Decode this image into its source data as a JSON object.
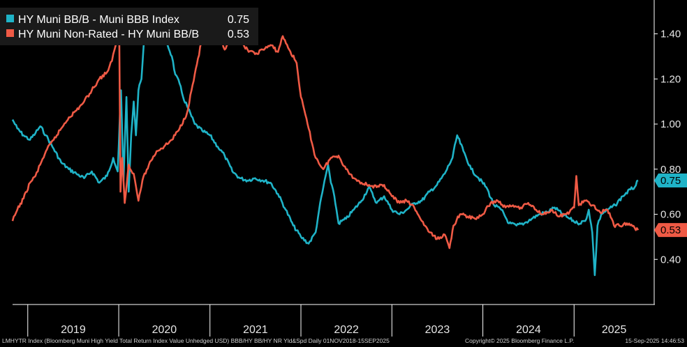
{
  "chart_data": {
    "type": "line",
    "y_ticks": [
      "1.40",
      "1.20",
      "1.00",
      "0.80",
      "0.60",
      "0.40"
    ],
    "ylim": [
      0.2,
      1.55
    ],
    "x_ticks": [
      "2019",
      "2020",
      "2021",
      "2022",
      "2023",
      "2024",
      "2025"
    ],
    "xlim": [
      "2018-11-01",
      "2025-09-15"
    ],
    "grid": false,
    "legend_position": "top-left",
    "series": [
      {
        "name": "HY Muni BB/B - Muni BBB Index",
        "last_value_label": "0.75",
        "color": "#1fb3c7",
        "points": [
          [
            "2018-11-01",
            1.02
          ],
          [
            "2018-11-20",
            0.98
          ],
          [
            "2018-12-15",
            0.95
          ],
          [
            "2019-01-10",
            0.93
          ],
          [
            "2019-02-01",
            0.96
          ],
          [
            "2019-02-20",
            0.99
          ],
          [
            "2019-03-15",
            0.95
          ],
          [
            "2019-04-15",
            0.89
          ],
          [
            "2019-05-15",
            0.83
          ],
          [
            "2019-06-15",
            0.8
          ],
          [
            "2019-07-15",
            0.78
          ],
          [
            "2019-08-15",
            0.76
          ],
          [
            "2019-09-15",
            0.79
          ],
          [
            "2019-10-15",
            0.74
          ],
          [
            "2019-11-15",
            0.77
          ],
          [
            "2019-12-10",
            0.85
          ],
          [
            "2019-12-28",
            0.79
          ],
          [
            "2020-01-10",
            1.15
          ],
          [
            "2020-01-20",
            0.75
          ],
          [
            "2020-02-01",
            1.12
          ],
          [
            "2020-02-10",
            0.7
          ],
          [
            "2020-02-20",
            0.95
          ],
          [
            "2020-03-01",
            1.1
          ],
          [
            "2020-03-10",
            0.95
          ],
          [
            "2020-03-20",
            1.15
          ],
          [
            "2020-04-01",
            1.2
          ],
          [
            "2020-04-10",
            1.35
          ],
          [
            "2020-04-20",
            1.43
          ],
          [
            "2020-05-01",
            1.48
          ],
          [
            "2020-05-15",
            1.42
          ],
          [
            "2020-06-01",
            1.46
          ],
          [
            "2020-06-15",
            1.4
          ],
          [
            "2020-07-01",
            1.45
          ],
          [
            "2020-07-15",
            1.35
          ],
          [
            "2020-08-01",
            1.3
          ],
          [
            "2020-08-15",
            1.22
          ],
          [
            "2020-09-01",
            1.18
          ],
          [
            "2020-09-15",
            1.12
          ],
          [
            "2020-10-01",
            1.08
          ],
          [
            "2020-11-01",
            1.0
          ],
          [
            "2020-12-01",
            0.97
          ],
          [
            "2021-01-01",
            0.95
          ],
          [
            "2021-02-01",
            0.9
          ],
          [
            "2021-03-01",
            0.86
          ],
          [
            "2021-04-01",
            0.79
          ],
          [
            "2021-05-01",
            0.76
          ],
          [
            "2021-06-01",
            0.75
          ],
          [
            "2021-07-01",
            0.76
          ],
          [
            "2021-08-01",
            0.75
          ],
          [
            "2021-09-01",
            0.74
          ],
          [
            "2021-10-01",
            0.69
          ],
          [
            "2021-11-01",
            0.62
          ],
          [
            "2021-12-01",
            0.55
          ],
          [
            "2022-01-01",
            0.5
          ],
          [
            "2022-02-01",
            0.47
          ],
          [
            "2022-03-01",
            0.52
          ],
          [
            "2022-03-15",
            0.62
          ],
          [
            "2022-04-01",
            0.72
          ],
          [
            "2022-04-20",
            0.82
          ],
          [
            "2022-05-01",
            0.74
          ],
          [
            "2022-05-15",
            0.68
          ],
          [
            "2022-06-01",
            0.56
          ],
          [
            "2022-07-01",
            0.58
          ],
          [
            "2022-08-01",
            0.62
          ],
          [
            "2022-09-01",
            0.66
          ],
          [
            "2022-10-01",
            0.72
          ],
          [
            "2022-11-01",
            0.65
          ],
          [
            "2022-12-01",
            0.68
          ],
          [
            "2023-01-01",
            0.62
          ],
          [
            "2023-02-01",
            0.6
          ],
          [
            "2023-03-01",
            0.62
          ],
          [
            "2023-04-01",
            0.65
          ],
          [
            "2023-05-01",
            0.66
          ],
          [
            "2023-06-01",
            0.7
          ],
          [
            "2023-07-01",
            0.73
          ],
          [
            "2023-08-01",
            0.78
          ],
          [
            "2023-09-01",
            0.85
          ],
          [
            "2023-09-20",
            0.95
          ],
          [
            "2023-10-15",
            0.88
          ],
          [
            "2023-11-15",
            0.8
          ],
          [
            "2023-12-15",
            0.76
          ],
          [
            "2024-01-15",
            0.72
          ],
          [
            "2024-02-15",
            0.64
          ],
          [
            "2024-03-15",
            0.62
          ],
          [
            "2024-04-15",
            0.56
          ],
          [
            "2024-05-15",
            0.55
          ],
          [
            "2024-06-15",
            0.56
          ],
          [
            "2024-07-15",
            0.58
          ],
          [
            "2024-08-15",
            0.6
          ],
          [
            "2024-09-15",
            0.61
          ],
          [
            "2024-10-15",
            0.63
          ],
          [
            "2024-11-15",
            0.6
          ],
          [
            "2024-12-15",
            0.58
          ],
          [
            "2025-01-15",
            0.56
          ],
          [
            "2025-02-15",
            0.57
          ],
          [
            "2025-03-01",
            0.62
          ],
          [
            "2025-03-15",
            0.52
          ],
          [
            "2025-03-25",
            0.33
          ],
          [
            "2025-04-05",
            0.55
          ],
          [
            "2025-04-20",
            0.6
          ],
          [
            "2025-05-15",
            0.62
          ],
          [
            "2025-06-15",
            0.64
          ],
          [
            "2025-07-15",
            0.68
          ],
          [
            "2025-08-15",
            0.71
          ],
          [
            "2025-09-01",
            0.72
          ],
          [
            "2025-09-15",
            0.75
          ]
        ]
      },
      {
        "name": "HY Muni Non-Rated - HY Muni BB/B",
        "last_value_label": "0.53",
        "color": "#ef5a45",
        "points": [
          [
            "2018-11-01",
            0.57
          ],
          [
            "2018-11-20",
            0.62
          ],
          [
            "2018-12-15",
            0.67
          ],
          [
            "2019-01-10",
            0.74
          ],
          [
            "2019-02-01",
            0.77
          ],
          [
            "2019-02-20",
            0.82
          ],
          [
            "2019-03-15",
            0.88
          ],
          [
            "2019-04-15",
            0.93
          ],
          [
            "2019-05-15",
            0.98
          ],
          [
            "2019-06-15",
            1.03
          ],
          [
            "2019-07-15",
            1.06
          ],
          [
            "2019-08-15",
            1.1
          ],
          [
            "2019-09-15",
            1.15
          ],
          [
            "2019-10-15",
            1.2
          ],
          [
            "2019-11-15",
            1.23
          ],
          [
            "2019-12-05",
            1.28
          ],
          [
            "2019-12-20",
            1.35
          ],
          [
            "2020-01-03",
            1.4
          ],
          [
            "2020-01-08",
            0.7
          ],
          [
            "2020-01-15",
            0.85
          ],
          [
            "2020-01-25",
            0.65
          ],
          [
            "2020-02-10",
            0.82
          ],
          [
            "2020-03-01",
            0.78
          ],
          [
            "2020-03-20",
            0.66
          ],
          [
            "2020-04-05",
            0.75
          ],
          [
            "2020-05-01",
            0.82
          ],
          [
            "2020-06-01",
            0.88
          ],
          [
            "2020-07-01",
            0.9
          ],
          [
            "2020-08-01",
            0.93
          ],
          [
            "2020-09-01",
            0.98
          ],
          [
            "2020-10-01",
            1.05
          ],
          [
            "2020-11-01",
            1.22
          ],
          [
            "2020-12-01",
            1.38
          ],
          [
            "2021-01-01",
            1.48
          ],
          [
            "2021-01-15",
            1.5
          ],
          [
            "2021-02-01",
            1.4
          ],
          [
            "2021-03-01",
            1.33
          ],
          [
            "2021-04-01",
            1.37
          ],
          [
            "2021-05-01",
            1.36
          ],
          [
            "2021-06-01",
            1.33
          ],
          [
            "2021-07-01",
            1.31
          ],
          [
            "2021-08-01",
            1.33
          ],
          [
            "2021-09-01",
            1.35
          ],
          [
            "2021-10-01",
            1.32
          ],
          [
            "2021-10-20",
            1.39
          ],
          [
            "2021-11-15",
            1.33
          ],
          [
            "2021-12-15",
            1.27
          ],
          [
            "2022-01-01",
            1.12
          ],
          [
            "2022-02-01",
            0.98
          ],
          [
            "2022-03-01",
            0.85
          ],
          [
            "2022-04-01",
            0.8
          ],
          [
            "2022-05-01",
            0.85
          ],
          [
            "2022-06-01",
            0.86
          ],
          [
            "2022-07-01",
            0.8
          ],
          [
            "2022-08-01",
            0.76
          ],
          [
            "2022-09-01",
            0.74
          ],
          [
            "2022-10-01",
            0.73
          ],
          [
            "2022-11-01",
            0.72
          ],
          [
            "2022-12-01",
            0.73
          ],
          [
            "2023-01-01",
            0.68
          ],
          [
            "2023-02-01",
            0.65
          ],
          [
            "2023-03-01",
            0.66
          ],
          [
            "2023-04-01",
            0.63
          ],
          [
            "2023-05-01",
            0.57
          ],
          [
            "2023-06-01",
            0.52
          ],
          [
            "2023-07-01",
            0.49
          ],
          [
            "2023-08-01",
            0.51
          ],
          [
            "2023-08-20",
            0.45
          ],
          [
            "2023-09-05",
            0.55
          ],
          [
            "2023-10-01",
            0.6
          ],
          [
            "2023-11-01",
            0.59
          ],
          [
            "2023-12-01",
            0.58
          ],
          [
            "2024-01-01",
            0.6
          ],
          [
            "2024-02-01",
            0.65
          ],
          [
            "2024-03-01",
            0.66
          ],
          [
            "2024-04-01",
            0.63
          ],
          [
            "2024-05-01",
            0.64
          ],
          [
            "2024-06-01",
            0.63
          ],
          [
            "2024-07-01",
            0.65
          ],
          [
            "2024-08-01",
            0.62
          ],
          [
            "2024-09-01",
            0.6
          ],
          [
            "2024-10-01",
            0.62
          ],
          [
            "2024-11-01",
            0.59
          ],
          [
            "2024-12-01",
            0.6
          ],
          [
            "2025-01-01",
            0.63
          ],
          [
            "2025-01-10",
            0.77
          ],
          [
            "2025-01-20",
            0.64
          ],
          [
            "2025-02-15",
            0.66
          ],
          [
            "2025-03-15",
            0.64
          ],
          [
            "2025-04-15",
            0.61
          ],
          [
            "2025-05-15",
            0.62
          ],
          [
            "2025-06-01",
            0.58
          ],
          [
            "2025-06-10",
            0.55
          ],
          [
            "2025-07-01",
            0.55
          ],
          [
            "2025-08-01",
            0.56
          ],
          [
            "2025-09-01",
            0.54
          ],
          [
            "2025-09-15",
            0.53
          ]
        ]
      }
    ]
  },
  "footer": {
    "left": "LMHYTR Index (Bloomberg Muni High Yield Total Return Index Value Unhedged USD) BBB/HY BB/HY NR Yld&Spd  Daily 01NOV2018-15SEP2025",
    "center": "Copyright© 2025 Bloomberg Finance L.P.",
    "right": "15-Sep-2025 14:46:53"
  }
}
